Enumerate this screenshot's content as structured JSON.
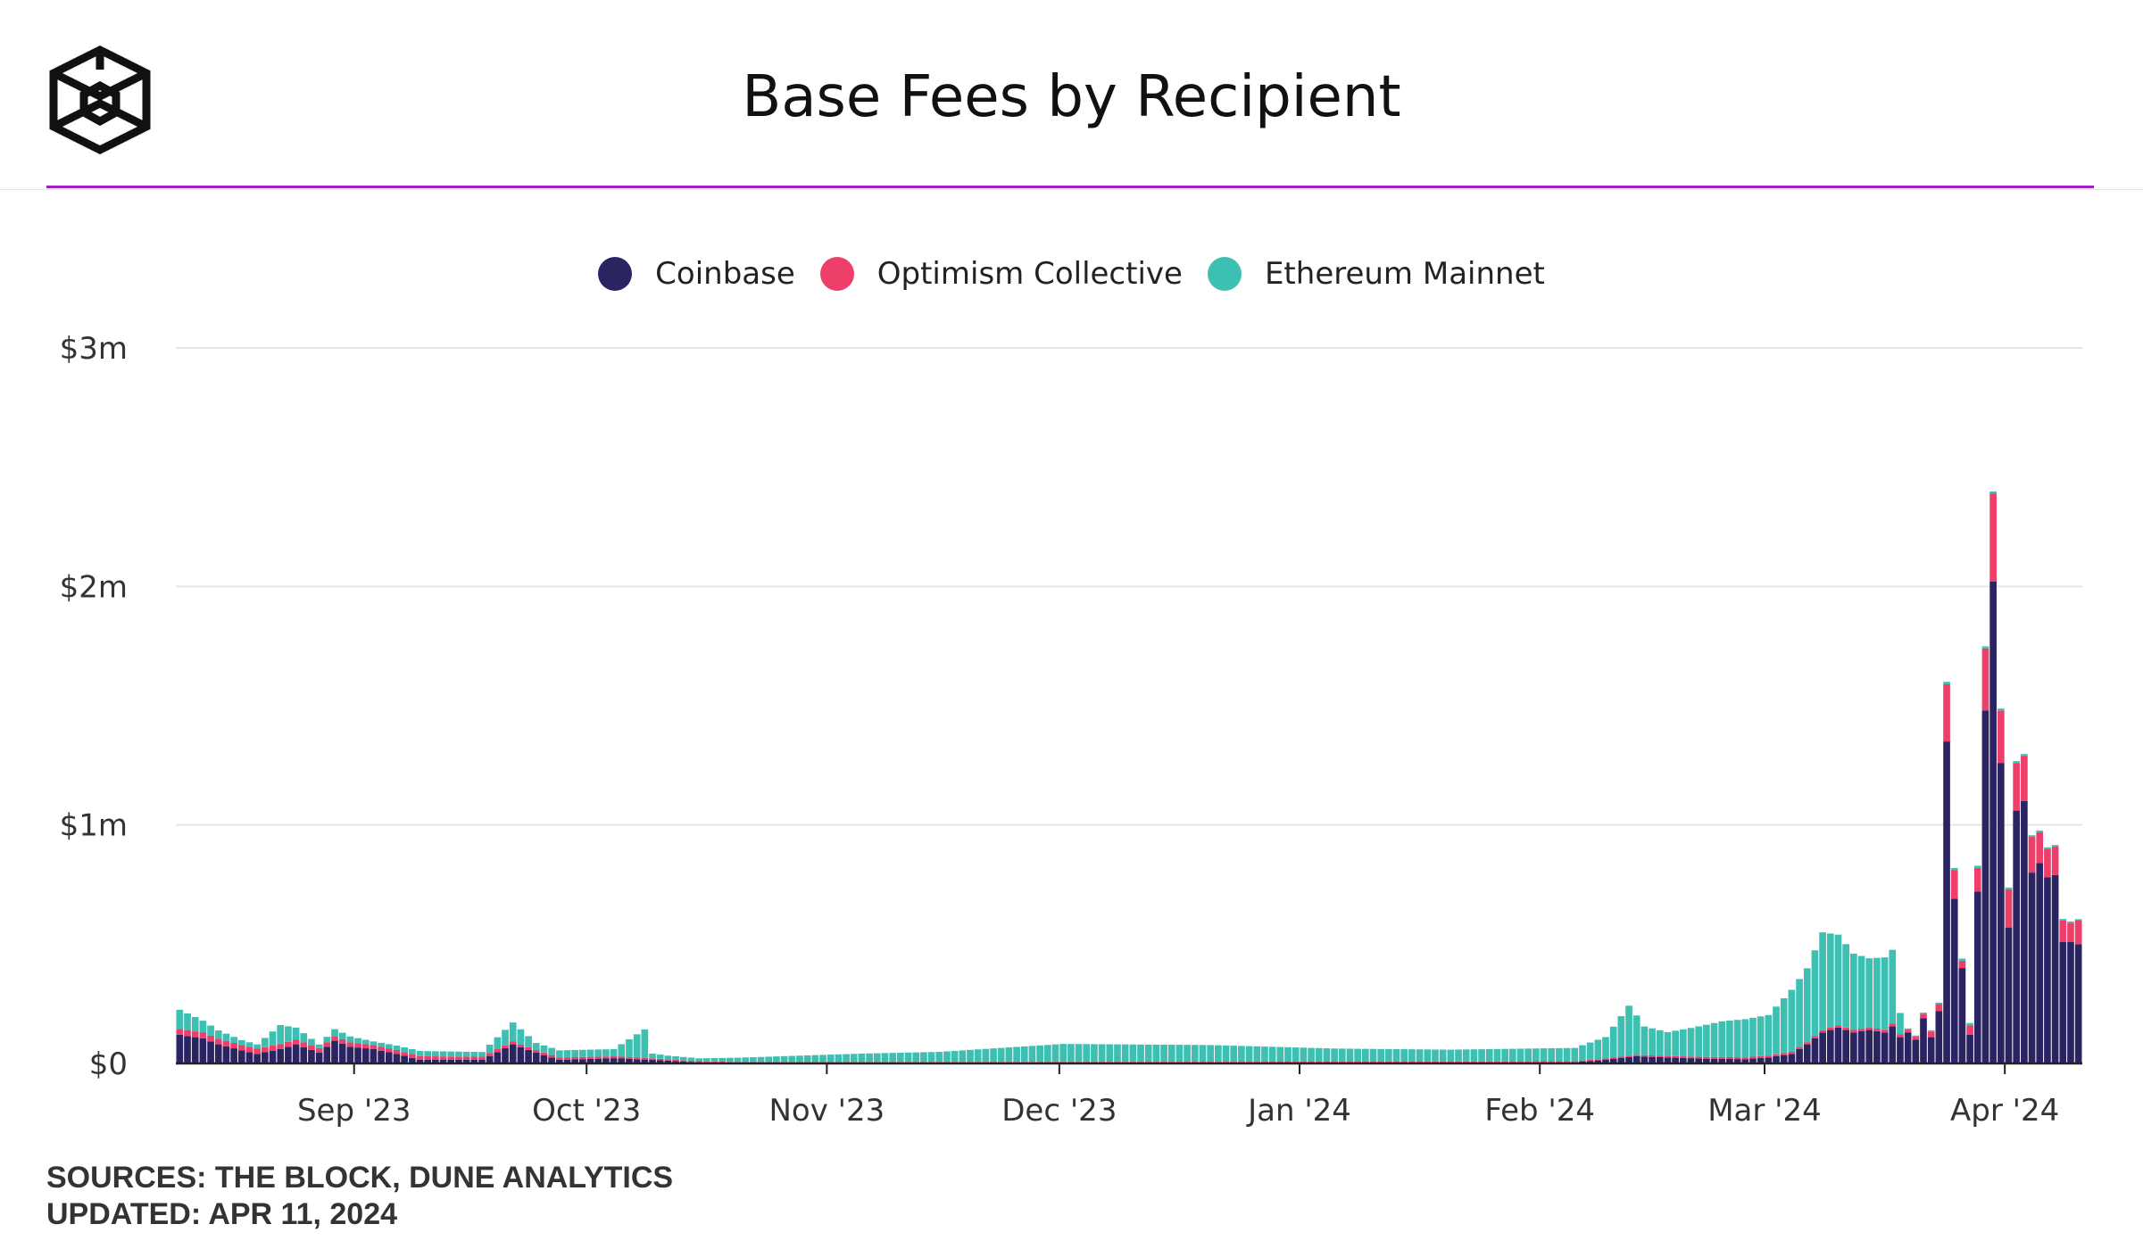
{
  "header": {
    "title": "Base Fees by Recipient",
    "accent_color": "#a11ec6",
    "logo_icon": "the-block-cube-logo"
  },
  "legend": [
    {
      "label": "Coinbase",
      "color": "#2b2462"
    },
    {
      "label": "Optimism Collective",
      "color": "#ee3e6a"
    },
    {
      "label": "Ethereum Mainnet",
      "color": "#3dbfb2"
    }
  ],
  "footer": {
    "sources": "SOURCES: THE BLOCK, DUNE ANALYTICS",
    "updated": "UPDATED: APR 11, 2024"
  },
  "chart_data": {
    "type": "bar",
    "stacked": true,
    "title": "Base Fees by Recipient",
    "x_start": "2023-08-09",
    "x_end": "2024-04-10",
    "xticks": [
      "Sep '23",
      "Oct '23",
      "Nov '23",
      "Dec '23",
      "Jan '24",
      "Feb '24",
      "Mar '24",
      "Apr '24"
    ],
    "yticks": [
      "$0",
      "$1m",
      "$2m",
      "$3m"
    ],
    "ylim": [
      0,
      3000000
    ],
    "grid": "horizontal",
    "legend_position": "top",
    "series": [
      {
        "name": "Coinbase",
        "color": "#2b2462",
        "keyframes": [
          [
            "2023-08-09",
            120000
          ],
          [
            "2023-08-12",
            105000
          ],
          [
            "2023-08-14",
            80000
          ],
          [
            "2023-08-17",
            55000
          ],
          [
            "2023-08-19",
            40000
          ],
          [
            "2023-08-22",
            60000
          ],
          [
            "2023-08-24",
            80000
          ],
          [
            "2023-08-27",
            45000
          ],
          [
            "2023-08-29",
            95000
          ],
          [
            "2023-08-31",
            70000
          ],
          [
            "2023-09-03",
            60000
          ],
          [
            "2023-09-06",
            40000
          ],
          [
            "2023-09-09",
            15000
          ],
          [
            "2023-09-17",
            15000
          ],
          [
            "2023-09-21",
            80000
          ],
          [
            "2023-09-24",
            45000
          ],
          [
            "2023-09-27",
            15000
          ],
          [
            "2023-10-04",
            22000
          ],
          [
            "2023-10-11",
            12000
          ],
          [
            "2023-10-15",
            5000
          ],
          [
            "2023-10-20",
            3000
          ],
          [
            "2023-11-15",
            3000
          ],
          [
            "2023-12-20",
            3000
          ],
          [
            "2024-01-20",
            3000
          ],
          [
            "2024-02-05",
            5000
          ],
          [
            "2024-02-09",
            15000
          ],
          [
            "2024-02-13",
            30000
          ],
          [
            "2024-02-17",
            25000
          ],
          [
            "2024-02-22",
            20000
          ],
          [
            "2024-02-27",
            18000
          ],
          [
            "2024-03-01",
            25000
          ],
          [
            "2024-03-04",
            40000
          ],
          [
            "2024-03-06",
            80000
          ],
          [
            "2024-03-08",
            130000
          ],
          [
            "2024-03-10",
            150000
          ],
          [
            "2024-03-12",
            130000
          ],
          [
            "2024-03-14",
            140000
          ],
          [
            "2024-03-16",
            130000
          ],
          [
            "2024-03-17",
            155000
          ],
          [
            "2024-03-18",
            110000
          ],
          [
            "2024-03-19",
            130000
          ],
          [
            "2024-03-20",
            100000
          ],
          [
            "2024-03-21",
            190000
          ],
          [
            "2024-03-22",
            110000
          ],
          [
            "2024-03-23",
            220000
          ],
          [
            "2024-03-24",
            1350000
          ],
          [
            "2024-03-25",
            690000
          ],
          [
            "2024-03-26",
            400000
          ],
          [
            "2024-03-27",
            120000
          ],
          [
            "2024-03-28",
            720000
          ],
          [
            "2024-03-29",
            1480000
          ],
          [
            "2024-03-30",
            2020000
          ],
          [
            "2024-03-31",
            1260000
          ],
          [
            "2024-04-01",
            570000
          ],
          [
            "2024-04-02",
            1060000
          ],
          [
            "2024-04-03",
            1100000
          ],
          [
            "2024-04-04",
            800000
          ],
          [
            "2024-04-05",
            840000
          ],
          [
            "2024-04-06",
            780000
          ],
          [
            "2024-04-07",
            790000
          ],
          [
            "2024-04-08",
            510000
          ],
          [
            "2024-04-09",
            510000
          ],
          [
            "2024-04-10",
            500000
          ]
        ]
      },
      {
        "name": "Optimism Collective",
        "color": "#ee3e6a",
        "keyframes": [
          [
            "2023-08-09",
            25000
          ],
          [
            "2023-09-10",
            15000
          ],
          [
            "2023-10-20",
            3000
          ],
          [
            "2024-02-05",
            5000
          ],
          [
            "2024-03-01",
            8000
          ],
          [
            "2024-03-20",
            12000
          ],
          [
            "2024-03-23",
            30000
          ],
          [
            "2024-03-24",
            240000
          ],
          [
            "2024-03-25",
            120000
          ],
          [
            "2024-03-26",
            30000
          ],
          [
            "2024-03-27",
            40000
          ],
          [
            "2024-03-28",
            100000
          ],
          [
            "2024-03-29",
            260000
          ],
          [
            "2024-03-30",
            370000
          ],
          [
            "2024-03-31",
            220000
          ],
          [
            "2024-04-01",
            160000
          ],
          [
            "2024-04-02",
            200000
          ],
          [
            "2024-04-03",
            190000
          ],
          [
            "2024-04-04",
            150000
          ],
          [
            "2024-04-05",
            130000
          ],
          [
            "2024-04-06",
            120000
          ],
          [
            "2024-04-07",
            120000
          ],
          [
            "2024-04-08",
            90000
          ],
          [
            "2024-04-09",
            80000
          ],
          [
            "2024-04-10",
            100000
          ]
        ]
      },
      {
        "name": "Ethereum Mainnet",
        "color": "#3dbfb2",
        "keyframes": [
          [
            "2023-08-09",
            80000
          ],
          [
            "2023-08-12",
            50000
          ],
          [
            "2023-08-14",
            35000
          ],
          [
            "2023-08-17",
            20000
          ],
          [
            "2023-08-19",
            18000
          ],
          [
            "2023-08-22",
            80000
          ],
          [
            "2023-08-24",
            50000
          ],
          [
            "2023-08-27",
            15000
          ],
          [
            "2023-08-29",
            30000
          ],
          [
            "2023-08-31",
            25000
          ],
          [
            "2023-09-03",
            15000
          ],
          [
            "2023-09-09",
            22000
          ],
          [
            "2023-09-17",
            20000
          ],
          [
            "2023-09-21",
            80000
          ],
          [
            "2023-09-24",
            30000
          ],
          [
            "2023-10-04",
            30000
          ],
          [
            "2023-10-08",
            120000
          ],
          [
            "2023-10-09",
            20000
          ],
          [
            "2023-10-11",
            15000
          ],
          [
            "2023-10-15",
            12000
          ],
          [
            "2023-10-20",
            18000
          ],
          [
            "2023-11-05",
            35000
          ],
          [
            "2023-11-15",
            42000
          ],
          [
            "2023-12-01",
            75000
          ],
          [
            "2023-12-20",
            70000
          ],
          [
            "2024-01-05",
            55000
          ],
          [
            "2024-01-20",
            50000
          ],
          [
            "2024-02-05",
            55000
          ],
          [
            "2024-02-09",
            90000
          ],
          [
            "2024-02-12",
            210000
          ],
          [
            "2024-02-14",
            120000
          ],
          [
            "2024-02-17",
            100000
          ],
          [
            "2024-02-20",
            120000
          ],
          [
            "2024-02-24",
            150000
          ],
          [
            "2024-02-27",
            160000
          ],
          [
            "2024-03-01",
            170000
          ],
          [
            "2024-03-04",
            260000
          ],
          [
            "2024-03-06",
            310000
          ],
          [
            "2024-03-08",
            410000
          ],
          [
            "2024-03-10",
            380000
          ],
          [
            "2024-03-12",
            320000
          ],
          [
            "2024-03-14",
            290000
          ],
          [
            "2024-03-17",
            310000
          ],
          [
            "2024-03-18",
            90000
          ],
          [
            "2024-03-19",
            5000
          ],
          [
            "2024-03-23",
            5000
          ],
          [
            "2024-03-24",
            10000
          ],
          [
            "2024-04-10",
            5000
          ]
        ]
      }
    ]
  }
}
